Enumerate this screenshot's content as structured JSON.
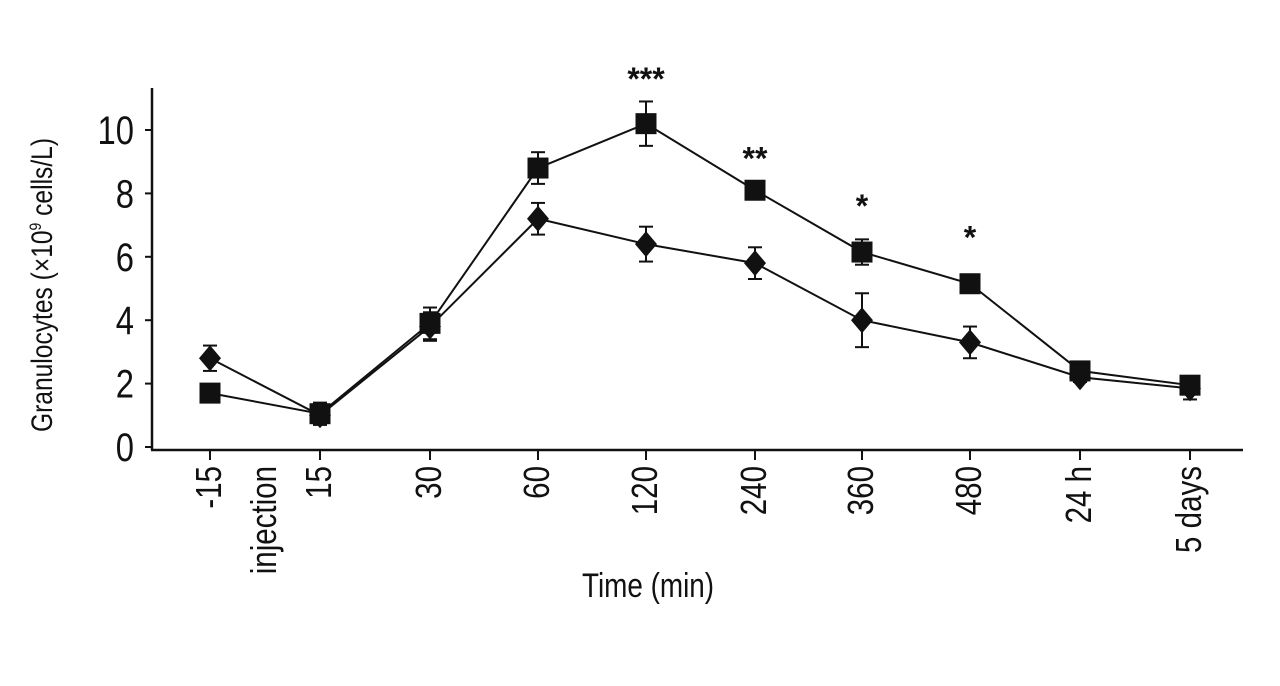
{
  "chart_data": {
    "type": "line",
    "title": "",
    "xlabel": "Time (min)",
    "ylabel_main": "Granulocytes (×10",
    "ylabel_exp": "9",
    "ylabel_unit": " cells/L)",
    "ylim": [
      0,
      11
    ],
    "yticks": [
      0,
      2,
      4,
      6,
      8,
      10
    ],
    "categories": [
      "-15",
      "injection",
      "15",
      "30",
      "60",
      "120",
      "240",
      "360",
      "480",
      "24 h",
      "5 days"
    ],
    "series": [
      {
        "name": "squares",
        "marker": "square",
        "x": [
          "-15",
          "15",
          "30",
          "60",
          "120",
          "240",
          "360",
          "480",
          "24 h",
          "5 days"
        ],
        "values": [
          1.7,
          1.05,
          3.9,
          8.8,
          10.2,
          8.1,
          6.15,
          5.15,
          2.4,
          1.95
        ],
        "errors": [
          0.0,
          0.35,
          0.5,
          0.5,
          0.7,
          0.0,
          0.4,
          0.0,
          0.0,
          0.0
        ]
      },
      {
        "name": "diamonds",
        "marker": "diamond",
        "x": [
          "-15",
          "15",
          "30",
          "60",
          "120",
          "240",
          "360",
          "480",
          "24 h",
          "5 days"
        ],
        "values": [
          2.8,
          1.0,
          3.8,
          7.2,
          6.4,
          5.8,
          4.0,
          3.3,
          2.2,
          1.85
        ],
        "errors": [
          0.4,
          0.3,
          0.45,
          0.5,
          0.55,
          0.5,
          0.85,
          0.5,
          0.15,
          0.35
        ]
      }
    ],
    "annotations": [
      {
        "x": "120",
        "y": 11.7,
        "text": "***"
      },
      {
        "x": "240",
        "y": 9.2,
        "text": "**"
      },
      {
        "x": "360",
        "y": 7.7,
        "text": "*"
      },
      {
        "x": "480",
        "y": 6.7,
        "text": "*"
      }
    ]
  }
}
